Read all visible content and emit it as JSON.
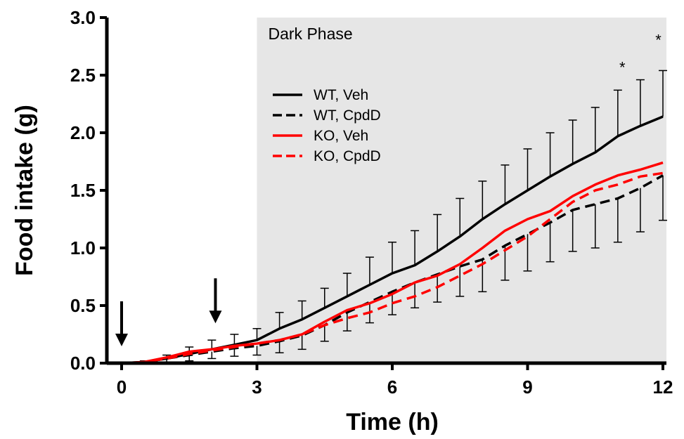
{
  "chart_data": {
    "type": "line",
    "xlabel": "Time (h)",
    "ylabel": "Food intake (g)",
    "xlim": [
      0,
      12
    ],
    "ylim": [
      0,
      3.0
    ],
    "xticks": [
      0,
      3,
      6,
      9,
      12
    ],
    "yticks": [
      0.0,
      0.5,
      1.0,
      1.5,
      2.0,
      2.5,
      3.0
    ],
    "ytick_labels": [
      "0.0",
      "0.5",
      "1.0",
      "1.5",
      "2.0",
      "2.5",
      "3.0"
    ],
    "shaded_region": {
      "label": "Dark Phase",
      "x_start": 3,
      "x_end": 12,
      "color": "#e6e6e6"
    },
    "arrows": [
      {
        "x": 0,
        "y": 0.0
      },
      {
        "x": 2.08,
        "y": 0.2
      }
    ],
    "significance_marks": [
      {
        "label": "*",
        "x": 11.1,
        "y": 2.52
      },
      {
        "label": "*",
        "x": 11.9,
        "y": 2.76
      }
    ],
    "legend_position": "upper-left-of-dark-phase",
    "series": [
      {
        "name": "WT, Veh",
        "color": "#000000",
        "dashed": false,
        "x": [
          0,
          0.5,
          1,
          1.5,
          2,
          2.5,
          3,
          3.5,
          4,
          4.5,
          5,
          5.5,
          6,
          6.5,
          7,
          7.5,
          8,
          8.5,
          9,
          9.5,
          10,
          10.5,
          11,
          11.5,
          12
        ],
        "y": [
          0,
          0.01,
          0.04,
          0.08,
          0.12,
          0.16,
          0.2,
          0.3,
          0.38,
          0.48,
          0.58,
          0.68,
          0.78,
          0.85,
          0.97,
          1.1,
          1.25,
          1.38,
          1.5,
          1.62,
          1.73,
          1.83,
          1.97,
          2.06,
          2.14
        ],
        "error": [
          0,
          0.01,
          0.03,
          0.06,
          0.08,
          0.09,
          0.1,
          0.14,
          0.16,
          0.17,
          0.2,
          0.24,
          0.27,
          0.3,
          0.32,
          0.33,
          0.33,
          0.34,
          0.36,
          0.38,
          0.38,
          0.39,
          0.4,
          0.4,
          0.4
        ]
      },
      {
        "name": "WT, CpdD",
        "color": "#000000",
        "dashed": true,
        "x": [
          0,
          0.5,
          1,
          1.5,
          2,
          2.5,
          3,
          3.5,
          4,
          4.5,
          5,
          5.5,
          6,
          6.5,
          7,
          7.5,
          8,
          8.5,
          9,
          9.5,
          10,
          10.5,
          11,
          11.5,
          12
        ],
        "y": [
          0,
          0.01,
          0.04,
          0.07,
          0.1,
          0.13,
          0.15,
          0.19,
          0.24,
          0.33,
          0.44,
          0.53,
          0.62,
          0.7,
          0.77,
          0.84,
          0.9,
          1.02,
          1.12,
          1.22,
          1.33,
          1.38,
          1.43,
          1.52,
          1.63
        ],
        "error": [
          0,
          0.01,
          0.03,
          0.05,
          0.06,
          0.07,
          0.08,
          0.1,
          0.12,
          0.14,
          0.16,
          0.18,
          0.2,
          0.22,
          0.24,
          0.26,
          0.28,
          0.3,
          0.32,
          0.34,
          0.36,
          0.38,
          0.38,
          0.38,
          0.39
        ]
      },
      {
        "name": "KO, Veh",
        "color": "#ff0000",
        "dashed": false,
        "x": [
          0,
          0.5,
          1,
          1.5,
          2,
          2.5,
          3,
          3.5,
          4,
          4.5,
          5,
          5.5,
          6,
          6.5,
          7,
          7.5,
          8,
          8.5,
          9,
          9.5,
          10,
          10.5,
          11,
          11.5,
          12
        ],
        "y": [
          0,
          0.01,
          0.05,
          0.1,
          0.12,
          0.15,
          0.17,
          0.2,
          0.25,
          0.36,
          0.46,
          0.52,
          0.6,
          0.7,
          0.76,
          0.86,
          1.0,
          1.15,
          1.25,
          1.32,
          1.45,
          1.55,
          1.63,
          1.68,
          1.74
        ],
        "error": []
      },
      {
        "name": "KO, CpdD",
        "color": "#ff0000",
        "dashed": true,
        "x": [
          0,
          0.5,
          1,
          1.5,
          2,
          2.5,
          3,
          3.5,
          4,
          4.5,
          5,
          5.5,
          6,
          6.5,
          7,
          7.5,
          8,
          8.5,
          9,
          9.5,
          10,
          10.5,
          11,
          11.5,
          12
        ],
        "y": [
          0,
          0.01,
          0.04,
          0.08,
          0.11,
          0.14,
          0.17,
          0.2,
          0.25,
          0.33,
          0.39,
          0.44,
          0.52,
          0.58,
          0.66,
          0.76,
          0.86,
          0.98,
          1.1,
          1.25,
          1.4,
          1.5,
          1.55,
          1.62,
          1.65
        ],
        "error": []
      }
    ]
  }
}
